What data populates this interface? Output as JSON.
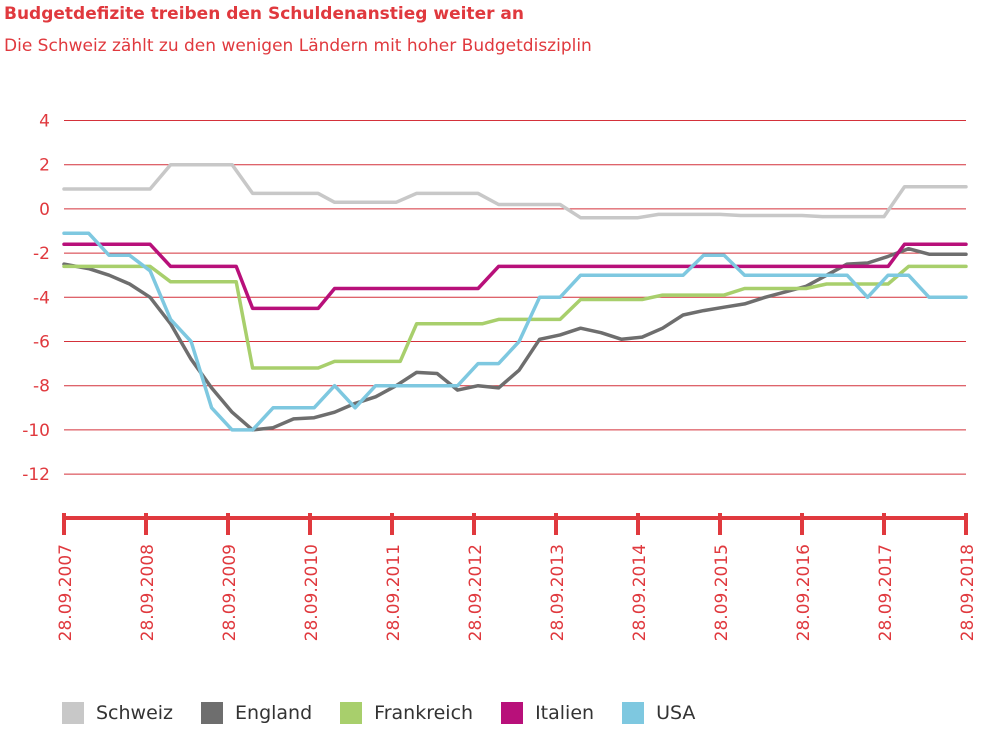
{
  "header": {
    "title": "Budgetdefizite treiben den Schuldenanstieg weiter an",
    "subtitle": "Die Schweiz zählt zu den wenigen Ländern mit hoher Budgetdisziplin"
  },
  "colors": {
    "accent": "#e0393e",
    "grid": "#d4313a",
    "Schweiz": "#c8c8c8",
    "England": "#6e6e6e",
    "Frankreich": "#a8cf6c",
    "Italien": "#b8107a",
    "USA": "#7ec8e0"
  },
  "legend": [
    {
      "label": "Schweiz",
      "color": "#c8c8c8"
    },
    {
      "label": "England",
      "color": "#6e6e6e"
    },
    {
      "label": "Frankreich",
      "color": "#a8cf6c"
    },
    {
      "label": "Italien",
      "color": "#b8107a"
    },
    {
      "label": "USA",
      "color": "#7ec8e0"
    }
  ],
  "chart_data": {
    "type": "line",
    "title": "Budgetdefizite treiben den Schuldenanstieg weiter an",
    "subtitle": "Die Schweiz zählt zu den wenigen Ländern mit hoher Budgetdisziplin",
    "xlabel": "",
    "ylabel": "",
    "xlim": [
      2007.0,
      2018.0
    ],
    "ylim": [
      -13.5,
      4
    ],
    "yticks": [
      4,
      2,
      0,
      -2,
      -4,
      -6,
      -8,
      -10,
      -12
    ],
    "x_tick_labels": [
      "28.09.2007",
      "28.09.2008",
      "28.09.2009",
      "28.09.2010",
      "28.09.2011",
      "28.09.2012",
      "28.09.2013",
      "28.09.2014",
      "28.09.2015",
      "28.09.2016",
      "28.09.2017",
      "28.09.2018"
    ],
    "grid": true,
    "legend_position": "bottom",
    "series": [
      {
        "name": "Schweiz",
        "color": "#c8c8c8",
        "x": [
          2007.0,
          2008.05,
          2008.3,
          2009.05,
          2009.3,
          2010.1,
          2010.3,
          2011.05,
          2011.3,
          2012.05,
          2012.3,
          2013.05,
          2013.3,
          2014.0,
          2014.25,
          2015.0,
          2015.25,
          2016.0,
          2016.25,
          2017.0,
          2017.25,
          2018.0
        ],
        "y": [
          0.9,
          0.9,
          2.0,
          2.0,
          0.7,
          0.7,
          0.3,
          0.3,
          0.7,
          0.7,
          0.2,
          0.2,
          -0.4,
          -0.4,
          -0.25,
          -0.25,
          -0.3,
          -0.3,
          -0.35,
          -0.35,
          1.0,
          1.0
        ]
      },
      {
        "name": "England",
        "color": "#6e6e6e",
        "x": [
          2007.0,
          2007.3,
          2007.55,
          2007.8,
          2008.05,
          2008.3,
          2008.55,
          2008.8,
          2009.05,
          2009.3,
          2009.55,
          2009.8,
          2010.05,
          2010.3,
          2010.55,
          2010.8,
          2011.05,
          2011.3,
          2011.55,
          2011.8,
          2012.05,
          2012.3,
          2012.55,
          2012.8,
          2013.05,
          2013.3,
          2013.55,
          2013.8,
          2014.05,
          2014.3,
          2014.55,
          2014.8,
          2015.05,
          2015.3,
          2015.55,
          2015.8,
          2016.05,
          2016.3,
          2016.55,
          2016.8,
          2017.05,
          2017.3,
          2017.55,
          2017.8,
          2018.0
        ],
        "y": [
          -2.5,
          -2.7,
          -3.0,
          -3.4,
          -4.0,
          -5.2,
          -6.8,
          -8.1,
          -9.2,
          -10.0,
          -9.9,
          -9.5,
          -9.45,
          -9.2,
          -8.8,
          -8.5,
          -8.0,
          -7.4,
          -7.45,
          -8.2,
          -8.0,
          -8.1,
          -7.3,
          -5.9,
          -5.7,
          -5.4,
          -5.6,
          -5.9,
          -5.8,
          -5.4,
          -4.8,
          -4.6,
          -4.45,
          -4.3,
          -4.0,
          -3.75,
          -3.5,
          -3.0,
          -2.5,
          -2.45,
          -2.15,
          -1.8,
          -2.05,
          -2.05,
          -2.05
        ]
      },
      {
        "name": "Frankreich",
        "color": "#a8cf6c",
        "x": [
          2007.0,
          2008.05,
          2008.3,
          2009.1,
          2009.3,
          2010.1,
          2010.3,
          2011.1,
          2011.3,
          2012.1,
          2012.3,
          2013.05,
          2013.3,
          2014.05,
          2014.3,
          2015.05,
          2015.3,
          2016.05,
          2016.3,
          2017.05,
          2017.3,
          2018.0
        ],
        "y": [
          -2.6,
          -2.6,
          -3.3,
          -3.3,
          -7.2,
          -7.2,
          -6.9,
          -6.9,
          -5.2,
          -5.2,
          -5.0,
          -5.0,
          -4.1,
          -4.1,
          -3.9,
          -3.9,
          -3.6,
          -3.6,
          -3.4,
          -3.4,
          -2.6,
          -2.6
        ]
      },
      {
        "name": "Italien",
        "color": "#b8107a",
        "x": [
          2007.0,
          2008.05,
          2008.3,
          2009.1,
          2009.3,
          2010.1,
          2010.3,
          2011.05,
          2012.05,
          2012.3,
          2017.05,
          2017.25,
          2018.0
        ],
        "y": [
          -1.6,
          -1.6,
          -2.6,
          -2.6,
          -4.5,
          -4.5,
          -3.6,
          -3.6,
          -3.6,
          -2.6,
          -2.6,
          -1.6,
          -1.6
        ]
      },
      {
        "name": "USA",
        "color": "#7ec8e0",
        "x": [
          2007.0,
          2007.3,
          2007.55,
          2007.8,
          2008.05,
          2008.3,
          2008.55,
          2008.8,
          2009.05,
          2009.3,
          2009.55,
          2009.8,
          2010.05,
          2010.3,
          2010.55,
          2010.8,
          2011.05,
          2011.3,
          2011.55,
          2011.8,
          2012.05,
          2012.3,
          2012.55,
          2012.8,
          2013.05,
          2013.3,
          2013.55,
          2013.8,
          2014.05,
          2014.3,
          2014.55,
          2014.8,
          2015.05,
          2015.3,
          2015.55,
          2015.8,
          2016.05,
          2016.3,
          2016.55,
          2016.8,
          2017.05,
          2017.3,
          2017.55,
          2017.8,
          2018.0
        ],
        "y": [
          -1.1,
          -1.1,
          -2.1,
          -2.1,
          -2.8,
          -5.0,
          -6.0,
          -9.0,
          -10.0,
          -10.0,
          -9.0,
          -9.0,
          -9.0,
          -8.0,
          -9.0,
          -8.0,
          -8.0,
          -8.0,
          -8.0,
          -8.0,
          -7.0,
          -7.0,
          -6.0,
          -4.0,
          -4.0,
          -3.0,
          -3.0,
          -3.0,
          -3.0,
          -3.0,
          -3.0,
          -2.1,
          -2.1,
          -3.0,
          -3.0,
          -3.0,
          -3.0,
          -3.0,
          -3.0,
          -4.0,
          -3.0,
          -3.0,
          -4.0,
          -4.0,
          -4.0
        ]
      }
    ]
  }
}
